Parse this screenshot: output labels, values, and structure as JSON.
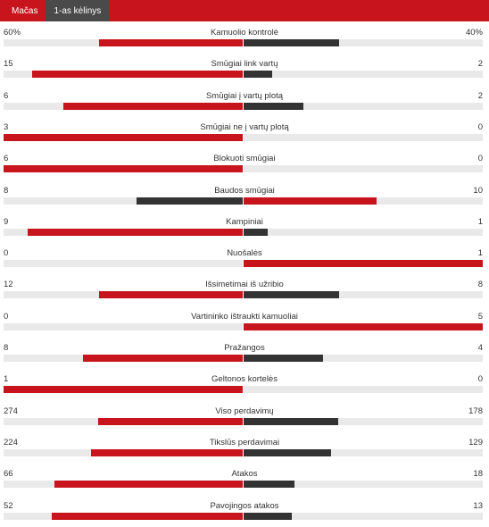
{
  "tabs": [
    {
      "label": "Mačas",
      "active": false
    },
    {
      "label": "1-as kėlinys",
      "active": true
    }
  ],
  "colors": {
    "brand_red": "#c8141c",
    "dark_bar": "#333333",
    "track": "#e9e9e9",
    "active_tab": "#4a4a4a"
  },
  "stats": [
    {
      "label": "Kamuolio kontrolė",
      "home": "60%",
      "away": "40%",
      "home_share": 0.6,
      "away_share": 0.4,
      "away_color": "dark"
    },
    {
      "label": "Smūgiai link vartų",
      "home": "15",
      "away": "2",
      "home_share": 0.882,
      "away_share": 0.118,
      "away_color": "dark"
    },
    {
      "label": "Smūgiai į vartų plotą",
      "home": "6",
      "away": "2",
      "home_share": 0.75,
      "away_share": 0.25,
      "away_color": "dark"
    },
    {
      "label": "Smūgiai ne į vartų plotą",
      "home": "3",
      "away": "0",
      "home_share": 1.0,
      "away_share": 0.0,
      "away_color": "dark"
    },
    {
      "label": "Blokuoti smūgiai",
      "home": "6",
      "away": "0",
      "home_share": 1.0,
      "away_share": 0.0,
      "away_color": "dark"
    },
    {
      "label": "Baudos smūgiai",
      "home": "8",
      "away": "10",
      "home_share": 0.444,
      "away_share": 0.556,
      "home_color": "dark",
      "away_color": "red"
    },
    {
      "label": "Kampiniai",
      "home": "9",
      "away": "1",
      "home_share": 0.9,
      "away_share": 0.1,
      "away_color": "dark"
    },
    {
      "label": "Nuošalės",
      "home": "0",
      "away": "1",
      "home_share": 0.0,
      "away_share": 1.0,
      "away_color": "red"
    },
    {
      "label": "Išsimetimai iš užribio",
      "home": "12",
      "away": "8",
      "home_share": 0.6,
      "away_share": 0.4,
      "away_color": "dark"
    },
    {
      "label": "Vartininko ištraukti kamuoliai",
      "home": "0",
      "away": "5",
      "home_share": 0.0,
      "away_share": 1.0,
      "away_color": "red"
    },
    {
      "label": "Pražangos",
      "home": "8",
      "away": "4",
      "home_share": 0.667,
      "away_share": 0.333,
      "away_color": "dark"
    },
    {
      "label": "Geltonos kortelės",
      "home": "1",
      "away": "0",
      "home_share": 1.0,
      "away_share": 0.0,
      "away_color": "dark"
    },
    {
      "label": "Viso perdavimų",
      "home": "274",
      "away": "178",
      "home_share": 0.606,
      "away_share": 0.394,
      "away_color": "dark"
    },
    {
      "label": "Tikslūs perdavimai",
      "home": "224",
      "away": "129",
      "home_share": 0.635,
      "away_share": 0.365,
      "away_color": "dark"
    },
    {
      "label": "Atakos",
      "home": "66",
      "away": "18",
      "home_share": 0.786,
      "away_share": 0.214,
      "away_color": "dark"
    },
    {
      "label": "Pavojingos atakos",
      "home": "52",
      "away": "13",
      "home_share": 0.8,
      "away_share": 0.2,
      "away_color": "dark"
    }
  ]
}
